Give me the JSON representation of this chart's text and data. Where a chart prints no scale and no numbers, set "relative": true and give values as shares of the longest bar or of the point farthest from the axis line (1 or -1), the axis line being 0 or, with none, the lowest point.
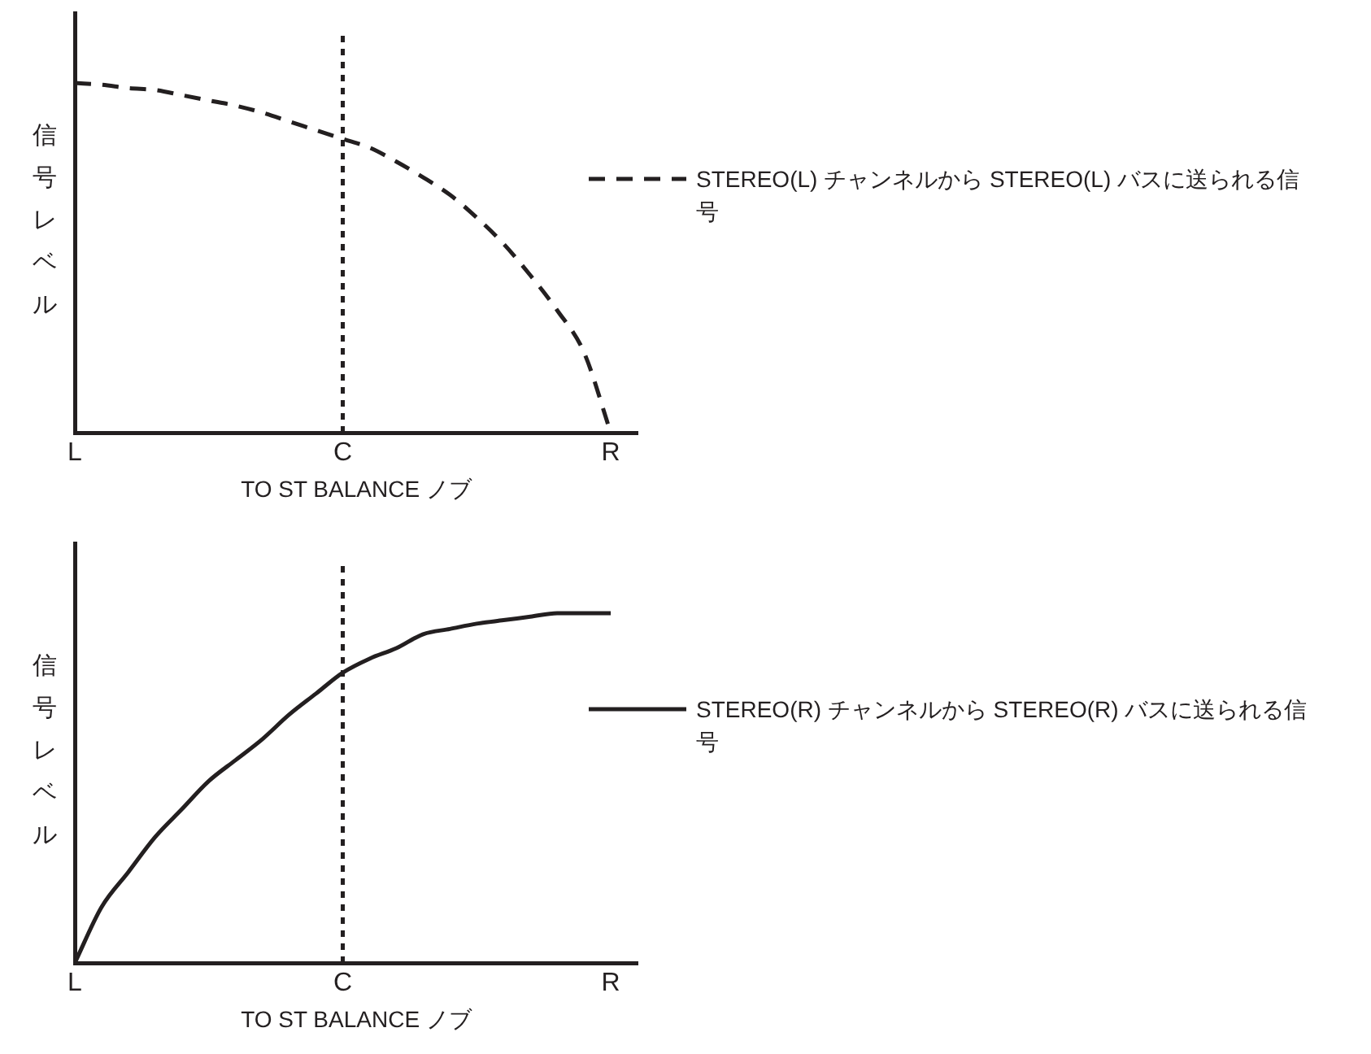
{
  "chart_data": [
    {
      "type": "line",
      "relative": true,
      "xlabel": "TO ST BALANCE ノブ",
      "ylabel": "信号レベル",
      "grid": false,
      "marker": "none",
      "line_style": "dashed",
      "legend": "right",
      "categories": [
        "L",
        null,
        null,
        null,
        null,
        null,
        null,
        null,
        null,
        null,
        "C",
        null,
        null,
        null,
        null,
        null,
        null,
        null,
        null,
        null,
        "R",
        null
      ],
      "series": [
        {
          "name": "STEREO(L) チャンネルから STEREO(L) バスに送られる信号",
          "color": "#231f20",
          "values": [
            1,
            0.995,
            0.985,
            0.98,
            0.965,
            0.95,
            0.935,
            0.915,
            0.89,
            0.865,
            0.84,
            0.815,
            0.775,
            0.73,
            0.68,
            0.615,
            0.54,
            0.45,
            0.35,
            0.23,
            0,
            null
          ]
        }
      ],
      "ref_lines": [
        {
          "axis": "x",
          "value": "C",
          "color": "#231f20",
          "line_style": "dotted"
        }
      ]
    },
    {
      "type": "line",
      "relative": true,
      "xlabel": "TO ST BALANCE ノブ",
      "ylabel": "信号レベル",
      "grid": false,
      "marker": "none",
      "line_style": "solid",
      "legend": "right",
      "categories": [
        "L",
        null,
        null,
        null,
        null,
        null,
        null,
        null,
        null,
        null,
        "C",
        null,
        null,
        null,
        null,
        null,
        null,
        null,
        null,
        null,
        "R",
        null
      ],
      "series": [
        {
          "name": "STEREO(R) チャンネルから STEREO(R) バスに送られる信号",
          "color": "#231f20",
          "values": [
            0,
            0.16,
            0.26,
            0.36,
            0.44,
            0.52,
            0.58,
            0.64,
            0.71,
            0.77,
            0.83,
            0.87,
            0.9,
            0.94,
            0.955,
            0.97,
            0.98,
            0.99,
            1,
            1,
            1,
            null
          ]
        }
      ],
      "ref_lines": [
        {
          "axis": "x",
          "value": "C",
          "color": "#231f20",
          "line_style": "dotted"
        }
      ]
    }
  ]
}
